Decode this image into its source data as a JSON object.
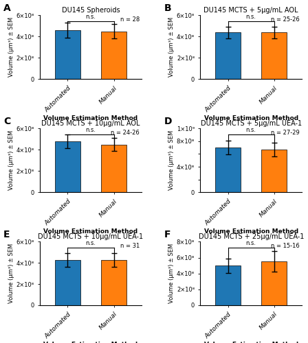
{
  "chart_data": [
    {
      "type": "bar",
      "panel_label": "A",
      "title": "DU145 Spheroids",
      "note": "n = 28",
      "bracket_label": "n.s.",
      "categories": [
        "Automated",
        "Manual"
      ],
      "values": [
        460000000,
        450000000
      ],
      "errors": [
        70000000,
        70000000
      ],
      "xlabel": "Volume Estimation Method",
      "ylabel": "Volume (μm³) ± SEM",
      "ylim": [
        0,
        600000000
      ],
      "yticks": [
        0,
        {
          "value": 200000000,
          "label": "2×10⁸"
        },
        {
          "value": 400000000,
          "label": "4×10⁸"
        },
        {
          "value": 600000000,
          "label": "6×10⁸"
        }
      ]
    },
    {
      "type": "bar",
      "panel_label": "B",
      "title": "DU145 MCTS + 5μg/mL AOL",
      "note": "n = 25-26",
      "bracket_label": "n.s.",
      "categories": [
        "Automated",
        "Manual"
      ],
      "values": [
        440000000,
        440000000
      ],
      "errors": [
        55000000,
        55000000
      ],
      "xlabel": "Volume Estimation Method",
      "ylabel": "Volume (μm³) ± SEM",
      "ylim": [
        0,
        600000000
      ],
      "yticks": [
        0,
        {
          "value": 200000000,
          "label": "2×10⁸"
        },
        {
          "value": 400000000,
          "label": "4×10⁸"
        },
        {
          "value": 600000000,
          "label": "6×10⁸"
        }
      ]
    },
    {
      "type": "bar",
      "panel_label": "C",
      "title": "DU145 MCTS + 10μg/mL AOL",
      "note": "n = 24-26",
      "bracket_label": "n.s.",
      "categories": [
        "Automated",
        "Manual"
      ],
      "values": [
        480000000,
        450000000
      ],
      "errors": [
        65000000,
        60000000
      ],
      "xlabel": "Volume Estimation Method",
      "ylabel": "Volume (μm³) ± SEM",
      "ylim": [
        0,
        600000000
      ],
      "yticks": [
        0,
        {
          "value": 200000000,
          "label": "2×10⁸"
        },
        {
          "value": 400000000,
          "label": "4×10⁸"
        },
        {
          "value": 600000000,
          "label": "6×10⁸"
        }
      ]
    },
    {
      "type": "bar",
      "panel_label": "D",
      "title": "DU145 MCTS + 5μg/mL UEA-1",
      "note": "n = 27-29",
      "bracket_label": "n.s.",
      "categories": [
        "Automated",
        "Manual"
      ],
      "values": [
        700000000,
        670000000
      ],
      "errors": [
        110000000,
        110000000
      ],
      "xlabel": "Volume Estimation Method",
      "ylabel": "Volume (μm³) ± SEM",
      "ylim": [
        0,
        1000000000
      ],
      "yticks": [
        0,
        {
          "value": 200000000,
          "label": null
        },
        {
          "value": 400000000,
          "label": "4×10⁸"
        },
        {
          "value": 600000000,
          "label": null
        },
        {
          "value": 800000000,
          "label": "8×10⁸"
        },
        {
          "value": 1000000000,
          "label": "1×10⁹"
        }
      ]
    },
    {
      "type": "bar",
      "panel_label": "E",
      "title": "DU145 MCTS + 10μg/mL UEA-1",
      "note": "n = 31",
      "bracket_label": "n.s.",
      "categories": [
        "Automated",
        "Manual"
      ],
      "values": [
        430000000,
        430000000
      ],
      "errors": [
        65000000,
        65000000
      ],
      "xlabel": "Volume Estimation Method",
      "ylabel": "Volume (μm³) ± SEM",
      "ylim": [
        0,
        600000000
      ],
      "yticks": [
        0,
        {
          "value": 200000000,
          "label": "2×10⁸"
        },
        {
          "value": 400000000,
          "label": "4×10⁸"
        },
        {
          "value": 600000000,
          "label": "6×10⁸"
        }
      ]
    },
    {
      "type": "bar",
      "panel_label": "F",
      "title": "DU145 MCTS + 25μg/mL UEA-1",
      "note": "n = 15-16",
      "bracket_label": "n.s.",
      "categories": [
        "Automated",
        "Manual"
      ],
      "values": [
        500000000,
        550000000
      ],
      "errors": [
        90000000,
        130000000
      ],
      "xlabel": "Volume Estimation Method",
      "ylabel": "Volume (μm³) ± SEM",
      "ylim": [
        0,
        800000000
      ],
      "yticks": [
        0,
        {
          "value": 200000000,
          "label": "2×10⁸"
        },
        {
          "value": 400000000,
          "label": "4×10⁸"
        },
        {
          "value": 600000000,
          "label": "6×10⁸"
        },
        {
          "value": 800000000,
          "label": "8×10⁸"
        }
      ]
    }
  ]
}
